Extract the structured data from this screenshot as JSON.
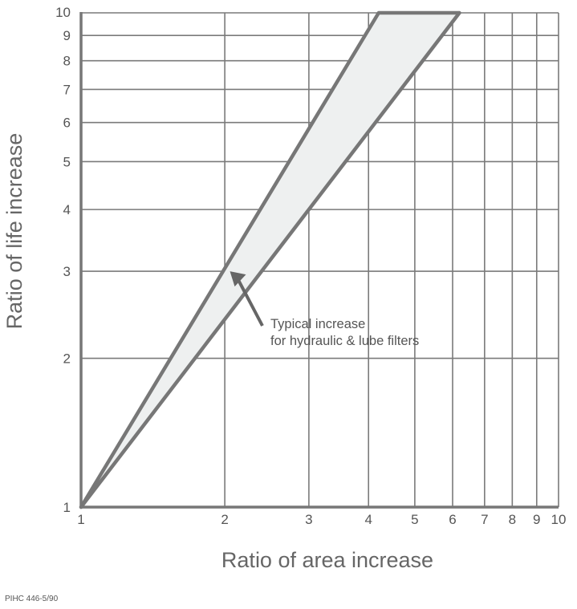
{
  "chart_data": {
    "type": "area",
    "xscale": "log",
    "yscale": "log",
    "xlim": [
      1,
      10
    ],
    "ylim": [
      1,
      10
    ],
    "xlabel": "Ratio of area increase",
    "ylabel": "Ratio of life increase",
    "xticks": [
      "1",
      "2",
      "3",
      "4",
      "5",
      "6",
      "7",
      "8",
      "9",
      "10"
    ],
    "yticks": [
      "1",
      "2",
      "3",
      "4",
      "5",
      "6",
      "7",
      "8",
      "9",
      "10"
    ],
    "grid": true,
    "band": {
      "upper": [
        [
          1,
          1
        ],
        [
          4.2,
          10
        ]
      ],
      "lower": [
        [
          1,
          1
        ],
        [
          6.2,
          10
        ]
      ],
      "fill": "#eef0f0",
      "stroke": "#777777"
    },
    "annotation": {
      "lines": [
        "Typical increase",
        "for hydraulic & lube filters"
      ],
      "arrow_to": [
        2.05,
        3.0
      ]
    }
  },
  "footnote": "PIHC 446-5/90"
}
